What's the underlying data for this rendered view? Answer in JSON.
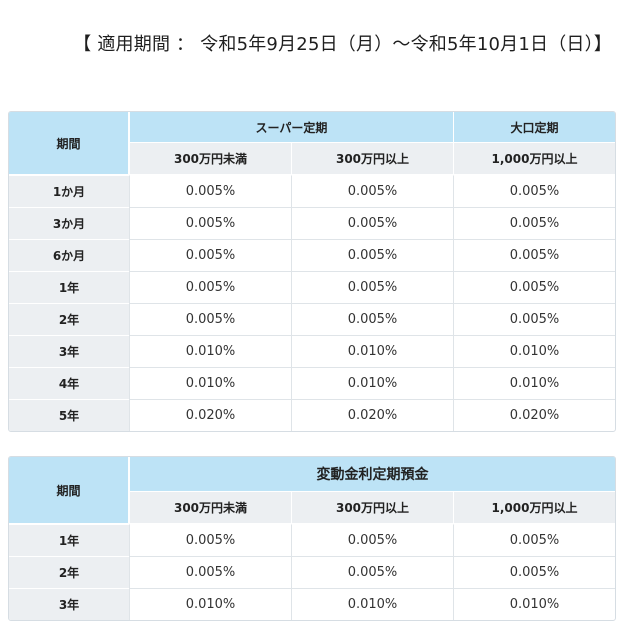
{
  "period_text": "【 適用期間 ： 令和5年9月25日（月）〜令和5年10月1日（日）】",
  "table1": {
    "label_header": "期間",
    "groups": [
      "スーパー定期",
      "大口定期"
    ],
    "subs": [
      "300万円未満",
      "300万円以上",
      "1,000万円以上"
    ],
    "rows": [
      {
        "label": "1か月",
        "values": [
          "0.005%",
          "0.005%",
          "0.005%"
        ]
      },
      {
        "label": "3か月",
        "values": [
          "0.005%",
          "0.005%",
          "0.005%"
        ]
      },
      {
        "label": "6か月",
        "values": [
          "0.005%",
          "0.005%",
          "0.005%"
        ]
      },
      {
        "label": "1年",
        "values": [
          "0.005%",
          "0.005%",
          "0.005%"
        ]
      },
      {
        "label": "2年",
        "values": [
          "0.005%",
          "0.005%",
          "0.005%"
        ]
      },
      {
        "label": "3年",
        "values": [
          "0.010%",
          "0.010%",
          "0.010%"
        ]
      },
      {
        "label": "4年",
        "values": [
          "0.010%",
          "0.010%",
          "0.010%"
        ]
      },
      {
        "label": "5年",
        "values": [
          "0.020%",
          "0.020%",
          "0.020%"
        ]
      }
    ]
  },
  "table2": {
    "label_header": "期間",
    "group": "変動金利定期預金",
    "subs": [
      "300万円未満",
      "300万円以上",
      "1,000万円以上"
    ],
    "rows": [
      {
        "label": "1年",
        "values": [
          "0.005%",
          "0.005%",
          "0.005%"
        ]
      },
      {
        "label": "2年",
        "values": [
          "0.005%",
          "0.005%",
          "0.005%"
        ]
      },
      {
        "label": "3年",
        "values": [
          "0.010%",
          "0.010%",
          "0.010%"
        ]
      }
    ]
  }
}
